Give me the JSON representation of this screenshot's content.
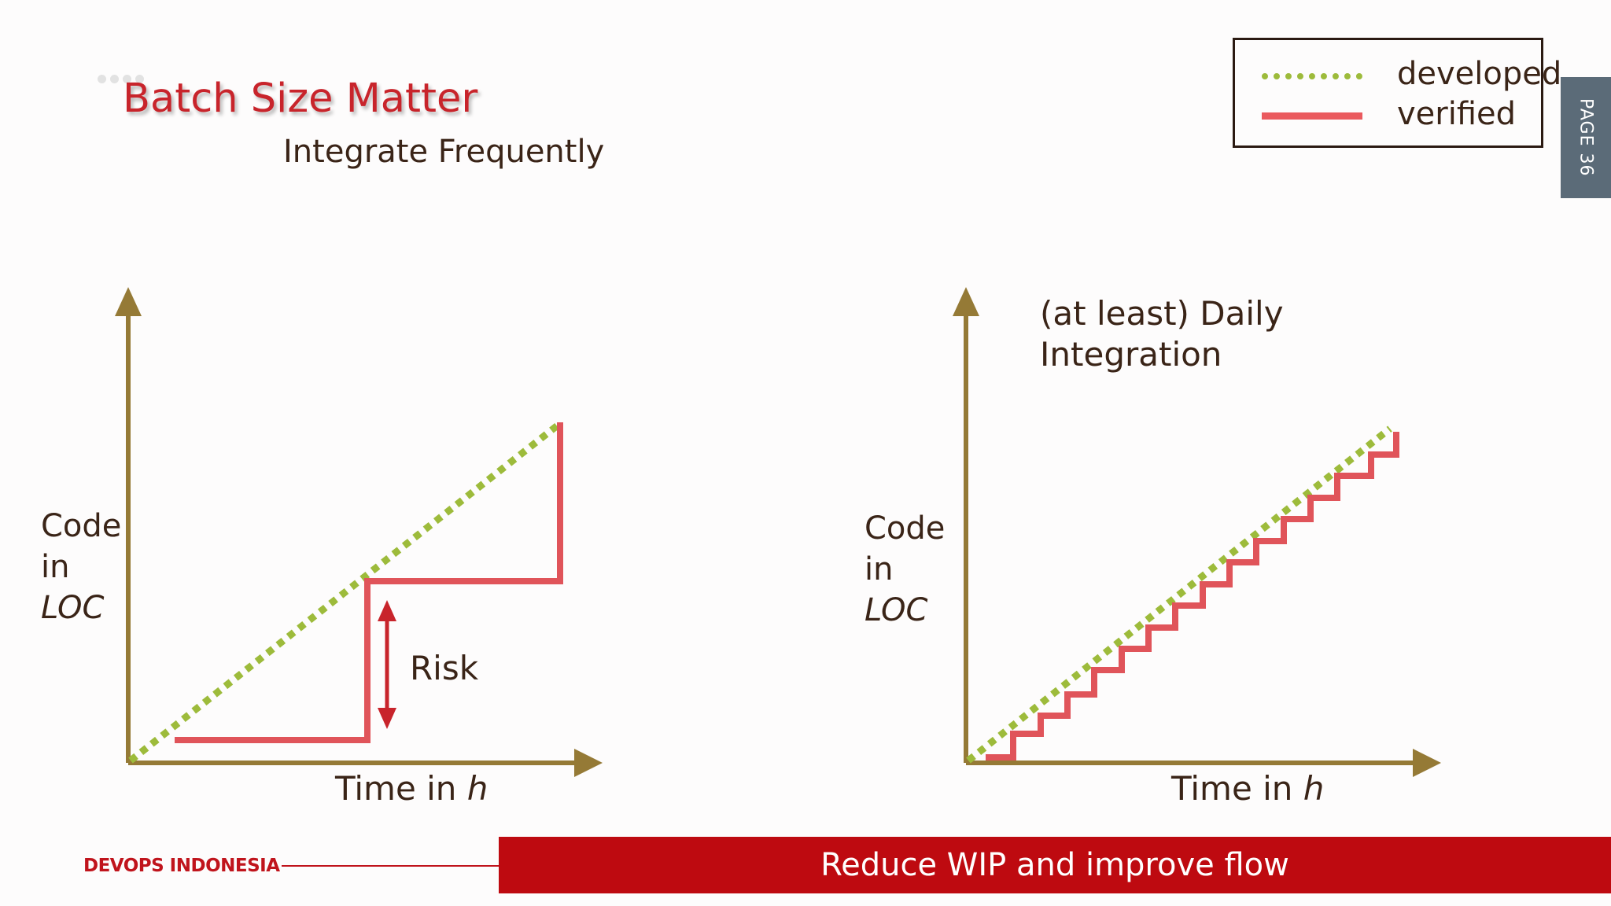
{
  "title": "Batch Size Matter",
  "subtitle": "Integrate Frequently",
  "legend": {
    "developed": "developed",
    "verified": "verified"
  },
  "colors": {
    "developed": "#9dbb3b",
    "verified": "#e0545a",
    "axis": "#957a36",
    "risk": "#c8242b",
    "brand": "#be0a10"
  },
  "page_tab": "PAGE 36",
  "left_diagram": {
    "ylabel": {
      "line1": "Code",
      "line2": "in",
      "line3": "LOC"
    },
    "xlabel": {
      "prefix": "Time in ",
      "unit": "h"
    },
    "risk_label": "Risk"
  },
  "right_diagram": {
    "ylabel": {
      "line1": "Code",
      "line2": "in",
      "line3": "LOC"
    },
    "xlabel": {
      "prefix": "Time in ",
      "unit": "h"
    },
    "note_line1": "(at least) Daily",
    "note_line2": "Integration"
  },
  "footer": {
    "brand": "DEVOPS INDONESIA",
    "tagline": "Reduce WIP and improve flow"
  }
}
